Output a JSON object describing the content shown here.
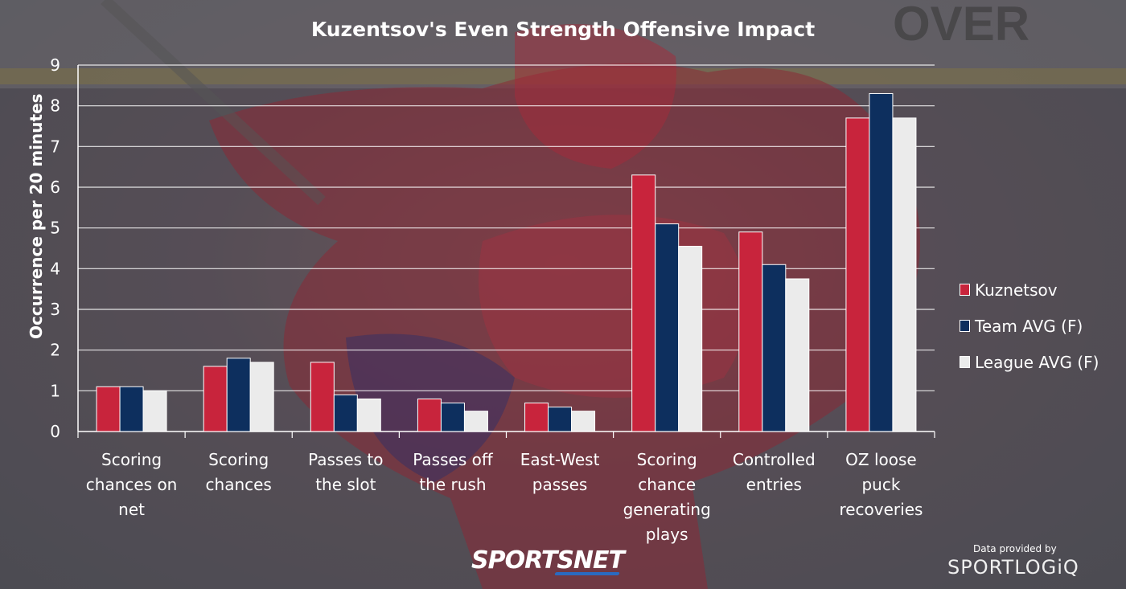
{
  "chart_data": {
    "type": "bar",
    "title": "Kuzentsov's Even Strength Offensive Impact",
    "ylabel": "Occurrence per 20 minutes",
    "xlabel": "",
    "ylim": [
      0,
      9
    ],
    "yticks": [
      0,
      1,
      2,
      3,
      4,
      5,
      6,
      7,
      8,
      9
    ],
    "grid": true,
    "legend_position": "right",
    "categories": [
      [
        "Scoring",
        "chances on",
        "net"
      ],
      [
        "Scoring",
        "chances"
      ],
      [
        "Passes to",
        "the slot"
      ],
      [
        "Passes off",
        "the rush"
      ],
      [
        "East-West",
        "passes"
      ],
      [
        "Scoring",
        "chance",
        "generating",
        "plays"
      ],
      [
        "Controlled",
        "entries"
      ],
      [
        "OZ loose",
        "puck",
        "recoveries"
      ]
    ],
    "series": [
      {
        "name": "Kuznetsov",
        "color": "#c8243c",
        "values": [
          1.1,
          1.6,
          1.7,
          0.8,
          0.7,
          6.3,
          4.9,
          7.7
        ]
      },
      {
        "name": "Team AVG (F)",
        "color": "#0d2f5e",
        "values": [
          1.1,
          1.8,
          0.9,
          0.7,
          0.6,
          5.1,
          4.1,
          8.3
        ]
      },
      {
        "name": "League AVG (F)",
        "color": "#ebebeb",
        "values": [
          1.0,
          1.7,
          0.8,
          0.5,
          0.5,
          4.55,
          3.75,
          7.7
        ]
      }
    ]
  },
  "branding": {
    "sportsnet": "SPORTSNET",
    "provided_by": "Data provided by",
    "sportlogiq": "SPORTLOGiQ"
  }
}
